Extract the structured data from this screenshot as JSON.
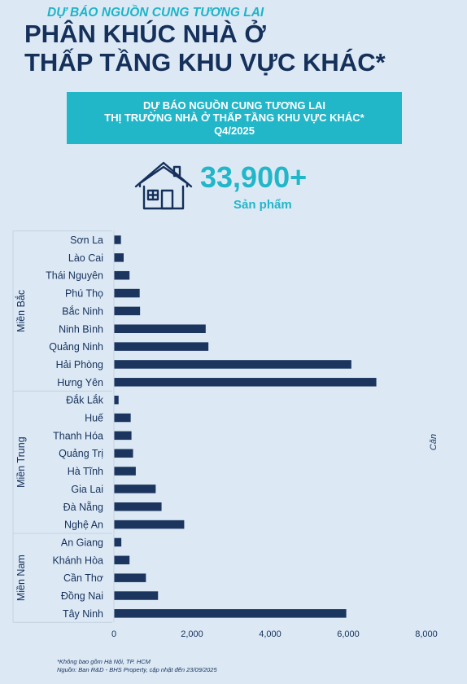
{
  "header": {
    "subtitle": "DỰ BÁO NGUỒN CUNG TƯƠNG LAI",
    "title_line1": "PHÂN KHÚC NHÀ Ở",
    "title_line2": "THẤP TẦNG KHU VỰC KHÁC*"
  },
  "banner": {
    "line1": "DỰ BÁO NGUỒN CUNG TƯƠNG LAI",
    "line2": "THỊ TRƯỜNG NHÀ Ở THẤP TẦNG KHU VỰC KHÁC*",
    "line3": "Q4/2025"
  },
  "summary": {
    "total": "33,900+",
    "unit": "Sản phẩm",
    "icon": "house-icon"
  },
  "chart_data": {
    "type": "bar",
    "orientation": "horizontal",
    "bar_color": "#1b355f",
    "xlabel": "Căn",
    "xlim": [
      0,
      8000
    ],
    "xticks": [
      0,
      2000,
      4000,
      6000,
      8000
    ],
    "xtick_labels": [
      "0",
      "2,000",
      "4,000",
      "6,000",
      "8,000"
    ],
    "groups": [
      {
        "name": "Miền Bắc",
        "categories": [
          "Sơn La",
          "Lào Cai",
          "Thái Nguyên",
          "Phú Thọ",
          "Bắc Ninh",
          "Ninh Bình",
          "Quảng Ninh",
          "Hải Phòng",
          "Hưng Yên"
        ],
        "values": [
          180,
          250,
          400,
          660,
          670,
          2350,
          2420,
          6080,
          6720
        ]
      },
      {
        "name": "Miền Trung",
        "categories": [
          "Đắk Lắk",
          "Huế",
          "Thanh Hóa",
          "Quảng Trị",
          "Hà Tĩnh",
          "Gia Lai",
          "Đà Nẵng",
          "Nghệ An"
        ],
        "values": [
          120,
          430,
          450,
          490,
          560,
          1070,
          1220,
          1800
        ]
      },
      {
        "name": "Miền Nam",
        "categories": [
          "An Giang",
          "Khánh Hòa",
          "Cần Thơ",
          "Đồng Nai",
          "Tây Ninh"
        ],
        "values": [
          190,
          400,
          820,
          1130,
          5950
        ]
      }
    ]
  },
  "footnote": {
    "line1": "*Không bao gồm Hà Nội, TP. HCM",
    "line2": "Nguồn: Ban R&D - BHS Property, cập nhật đến 23/09/2025"
  }
}
